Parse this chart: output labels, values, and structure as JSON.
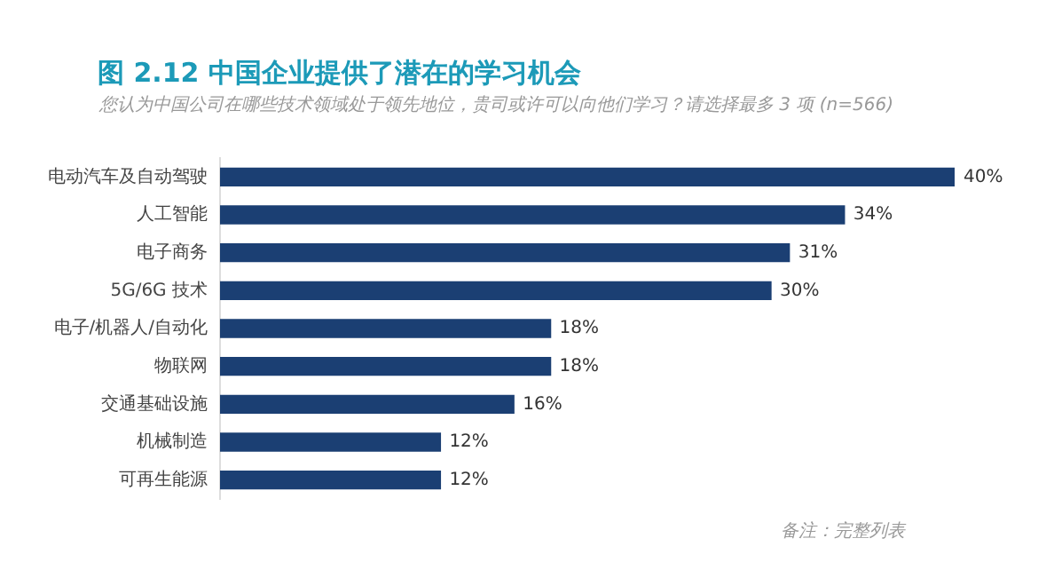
{
  "chart_data": {
    "type": "bar",
    "orientation": "horizontal",
    "title": "图 2.12 中国企业提供了潜在的学习机会",
    "subtitle": "您认为中国公司在哪些技术领域处于领先地位，贵司或许可以向他们学习？请选择最多 3 项 (n=566)",
    "categories": [
      "电动汽车及自动驾驶",
      "人工智能",
      "电子商务",
      "5G/6G 技术",
      "电子/机器人/自动化",
      "物联网",
      "交通基础设施",
      "机械制造",
      "可再生能源"
    ],
    "values": [
      40,
      34,
      31,
      30,
      18,
      18,
      16,
      12,
      12
    ],
    "value_labels": [
      "40%",
      "34%",
      "31%",
      "30%",
      "18%",
      "18%",
      "16%",
      "12%",
      "12%"
    ],
    "color": "#1b3f73",
    "grid": false,
    "legend": false,
    "tick_labels": "y",
    "annotations": [
      "备注：完整列表"
    ]
  }
}
